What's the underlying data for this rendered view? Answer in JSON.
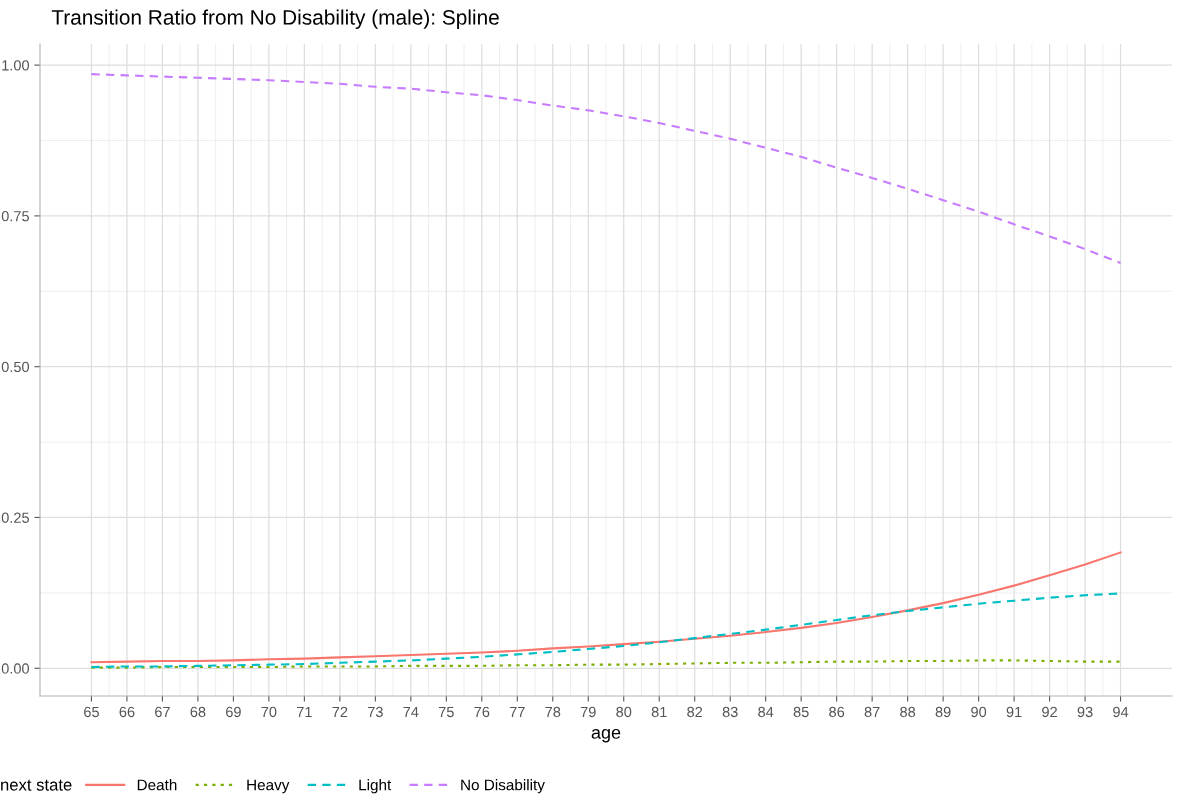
{
  "chart_data": {
    "type": "line",
    "title": "Transition Ratio from No Disability (male): Spline",
    "xlabel": "age",
    "legend_title": "next state",
    "x": [
      65,
      66,
      67,
      68,
      69,
      70,
      71,
      72,
      73,
      74,
      75,
      76,
      77,
      78,
      79,
      80,
      81,
      82,
      83,
      84,
      85,
      86,
      87,
      88,
      89,
      90,
      91,
      92,
      93,
      94
    ],
    "series": [
      {
        "name": "Death",
        "color": "#f8766d",
        "line_style": "solid",
        "values": [
          0.01,
          0.011,
          0.012,
          0.012,
          0.013,
          0.015,
          0.016,
          0.018,
          0.02,
          0.022,
          0.024,
          0.026,
          0.029,
          0.033,
          0.036,
          0.04,
          0.044,
          0.049,
          0.054,
          0.06,
          0.067,
          0.075,
          0.085,
          0.096,
          0.108,
          0.122,
          0.137,
          0.154,
          0.172,
          0.192
        ]
      },
      {
        "name": "Heavy",
        "color": "#7cae00",
        "line_style": "dotted",
        "values": [
          0.001,
          0.001,
          0.002,
          0.002,
          0.002,
          0.002,
          0.003,
          0.003,
          0.003,
          0.004,
          0.004,
          0.004,
          0.005,
          0.005,
          0.006,
          0.006,
          0.007,
          0.008,
          0.009,
          0.009,
          0.01,
          0.011,
          0.011,
          0.012,
          0.012,
          0.013,
          0.013,
          0.012,
          0.011,
          0.011
        ]
      },
      {
        "name": "Light",
        "color": "#00bfc4",
        "line_style": "dashed",
        "values": [
          0.002,
          0.003,
          0.003,
          0.004,
          0.005,
          0.006,
          0.007,
          0.009,
          0.011,
          0.013,
          0.016,
          0.019,
          0.023,
          0.027,
          0.032,
          0.037,
          0.043,
          0.05,
          0.057,
          0.064,
          0.072,
          0.08,
          0.088,
          0.095,
          0.101,
          0.107,
          0.112,
          0.117,
          0.121,
          0.124
        ]
      },
      {
        "name": "No Disability",
        "color": "#c77cff",
        "line_style": "dashed",
        "values": [
          0.985,
          0.983,
          0.981,
          0.979,
          0.977,
          0.975,
          0.972,
          0.969,
          0.964,
          0.961,
          0.955,
          0.95,
          0.942,
          0.933,
          0.925,
          0.915,
          0.904,
          0.891,
          0.878,
          0.863,
          0.848,
          0.83,
          0.813,
          0.795,
          0.776,
          0.757,
          0.736,
          0.716,
          0.695,
          0.672
        ]
      }
    ],
    "xlim": [
      63.55,
      95.45
    ],
    "xticks": [
      65,
      66,
      67,
      68,
      69,
      70,
      71,
      72,
      73,
      74,
      75,
      76,
      77,
      78,
      79,
      80,
      81,
      82,
      83,
      84,
      85,
      86,
      87,
      88,
      89,
      90,
      91,
      92,
      93,
      94
    ],
    "ylim": [
      -0.046,
      1.035
    ],
    "yticks": [
      {
        "value": 0,
        "label": "0.00"
      },
      {
        "value": 0.25,
        "label": "0.25"
      },
      {
        "value": 0.5,
        "label": "0.50"
      },
      {
        "value": 0.75,
        "label": "0.75"
      },
      {
        "value": 1,
        "label": "1.00"
      }
    ],
    "grid": true,
    "legend": "bottom"
  }
}
